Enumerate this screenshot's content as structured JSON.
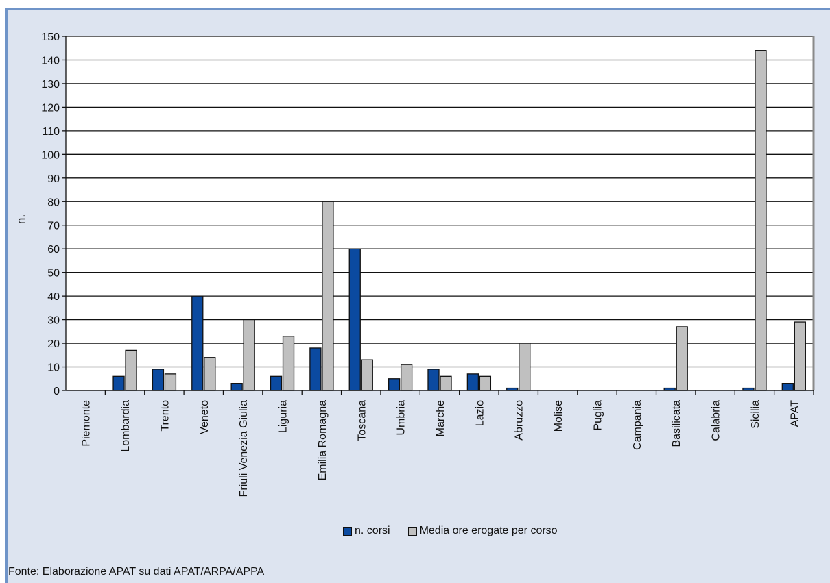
{
  "chart_data": {
    "type": "bar",
    "ylabel": "n.",
    "ylim": [
      0,
      150
    ],
    "yticks": [
      0,
      10,
      20,
      30,
      40,
      50,
      60,
      70,
      80,
      90,
      100,
      110,
      120,
      130,
      140,
      150
    ],
    "grid": true,
    "legend_placement": "bottom",
    "categories": [
      "Piemonte",
      "Lombardia",
      "Trento",
      "Veneto",
      "Friuli Venezia Giulia",
      "Liguria",
      "Emilia Romagna",
      "Toscana",
      "Umbria",
      "Marche",
      "Lazio",
      "Abruzzo",
      "Molise",
      "Puglia",
      "Campania",
      "Basilicata",
      "Calabria",
      "Sicilia",
      "APAT"
    ],
    "series": [
      {
        "name": "n. corsi",
        "color": "#0b4aa0",
        "values": [
          0,
          6,
          9,
          40,
          3,
          6,
          18,
          60,
          5,
          9,
          7,
          1,
          0,
          0,
          0,
          1,
          0,
          1,
          3
        ]
      },
      {
        "name": "Media ore erogate per corso",
        "color": "#c0c0c0",
        "values": [
          0,
          17,
          7,
          14,
          30,
          23,
          80,
          13,
          11,
          6,
          6,
          20,
          0,
          0,
          0,
          27,
          0,
          144,
          29
        ]
      }
    ]
  },
  "source_note": "Fonte: Elaborazione APAT su dati APAT/ARPA/APPA"
}
